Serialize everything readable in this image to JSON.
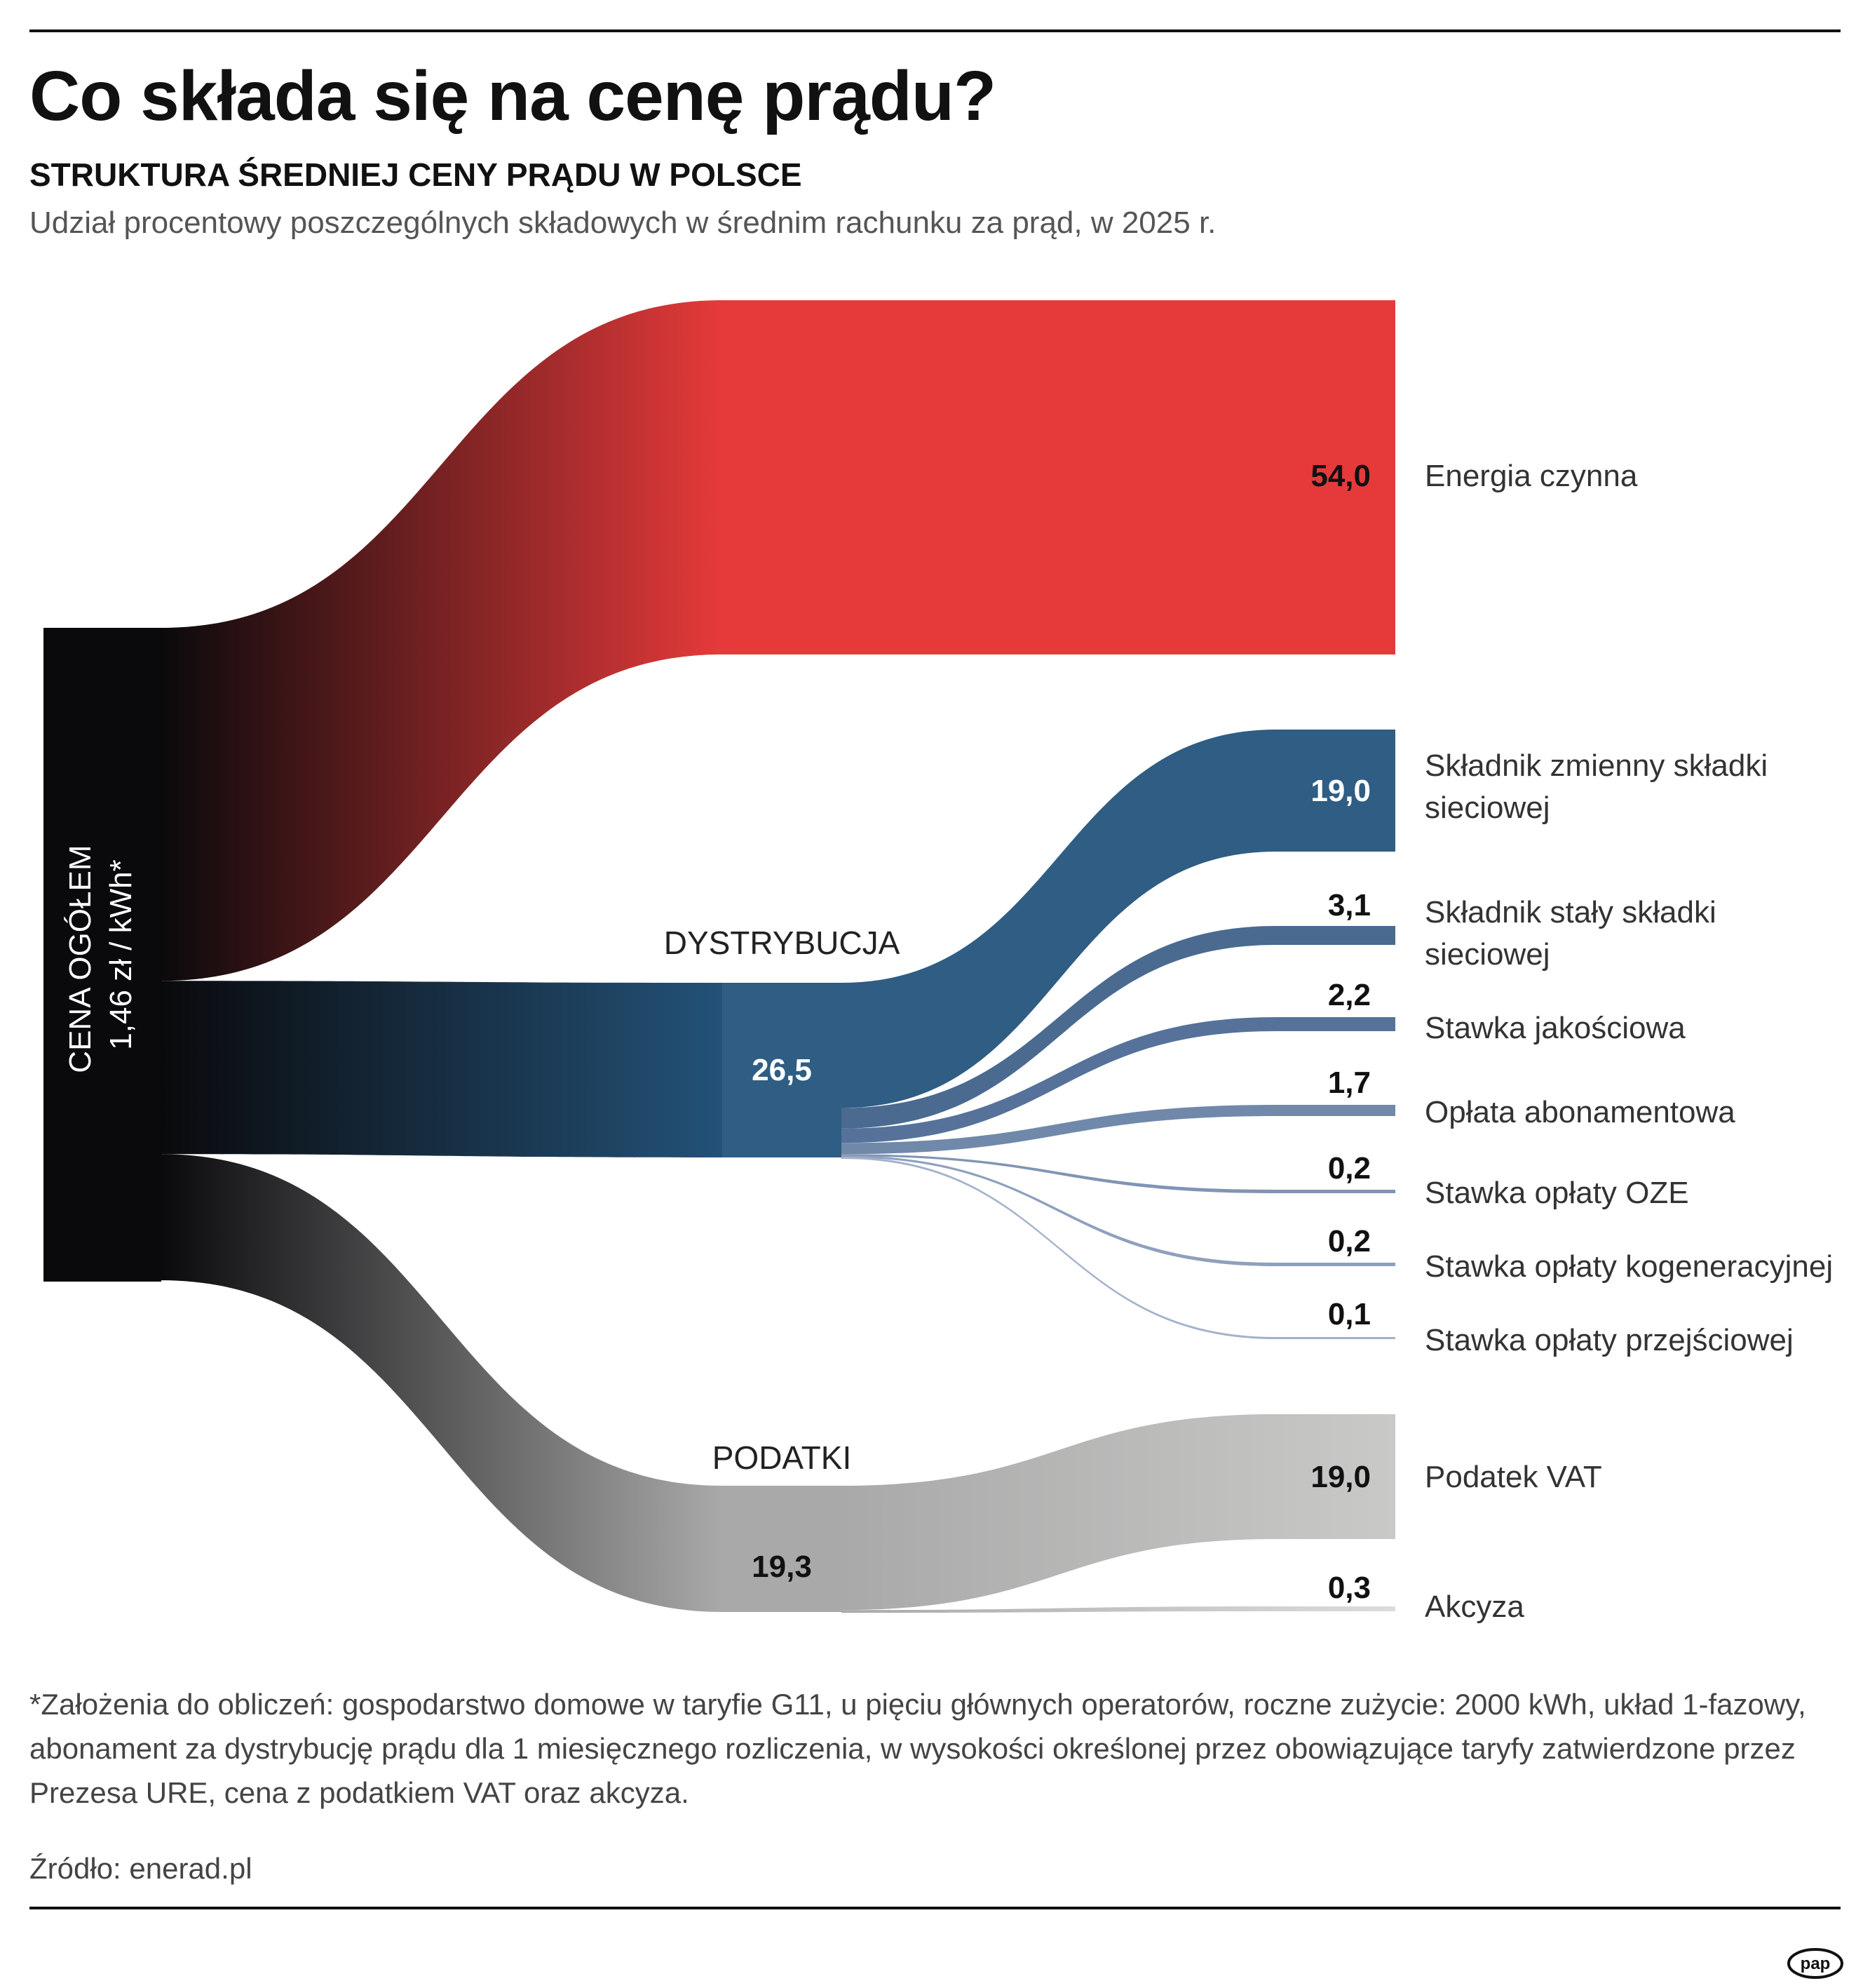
{
  "header": {
    "title": "Co składa się na cenę prądu?",
    "subtitle": "STRUKTURA ŚREDNIEJ CENY PRĄDU W POLSCE",
    "description": "Udział procentowy poszczególnych składowych w średnim rachunku za prąd, w 2025 r."
  },
  "chart_data": {
    "type": "sankey",
    "title": "Co składa się na cenę prądu?",
    "subtitle": "STRUKTURA ŚREDNIEJ CENY PRĄDU W POLSCE",
    "unit": "%",
    "source_node": {
      "label_line1": "CENA OGÓŁEM",
      "label_line2": "1,46 zł / kWh*"
    },
    "groups": [
      {
        "key": "energia",
        "label": "",
        "value": 54.0,
        "value_label": "",
        "items": [
          {
            "label": "Energia czynna",
            "value": 54.0,
            "value_label": "54,0",
            "color": "#e63a3a"
          }
        ]
      },
      {
        "key": "dystrybucja",
        "label": "DYSTRYBUCJA",
        "value": 26.5,
        "value_label": "26,5",
        "items": [
          {
            "label": "Składnik zmienny składki sieciowej",
            "value": 19.0,
            "value_label": "19,0",
            "color": "#2f5d83"
          },
          {
            "label": "Składnik stały składki sieciowej",
            "value": 3.1,
            "value_label": "3,1",
            "color": "#4a6a90"
          },
          {
            "label": "Stawka jakościowa",
            "value": 2.2,
            "value_label": "2,2",
            "color": "#56729a"
          },
          {
            "label": "Opłata abonamentowa",
            "value": 1.7,
            "value_label": "1,7",
            "color": "#7089aa"
          },
          {
            "label": "Stawka opłaty OZE",
            "value": 0.2,
            "value_label": "0,2",
            "color": "#8095b4"
          },
          {
            "label": "Stawka opłaty kogeneracyjnej",
            "value": 0.2,
            "value_label": "0,2",
            "color": "#8ea0bd"
          },
          {
            "label": "Stawka opłaty przejściowej",
            "value": 0.1,
            "value_label": "0,1",
            "color": "#a3b2ca"
          }
        ]
      },
      {
        "key": "podatki",
        "label": "PODATKI",
        "value": 19.3,
        "value_label": "19,3",
        "items": [
          {
            "label": "Podatek VAT",
            "value": 19.0,
            "value_label": "19,0",
            "color": "#c9c9c7"
          },
          {
            "label": "Akcyza",
            "value": 0.3,
            "value_label": "0,3",
            "color": "#d6d6d4"
          }
        ]
      }
    ]
  },
  "footnote": "*Założenia do obliczeń: gospodarstwo domowe w taryfie G11, u pięciu głównych operatorów, roczne zużycie: 2000 kWh, układ 1-fazowy, abonament za dystrybucję prądu dla 1 miesięcznego rozliczenia, w wysokości określonej przez obowiązujące taryfy zatwierdzone przez Prezesa URE, cena z podatkiem VAT oraz akcyza.",
  "source": "Źródło: enerad.pl",
  "logo": "pap",
  "colors": {
    "energy": "#e63a3a",
    "distribution": "#235278",
    "taxes": "#a9a9a9",
    "source": "#0a0a0c"
  }
}
